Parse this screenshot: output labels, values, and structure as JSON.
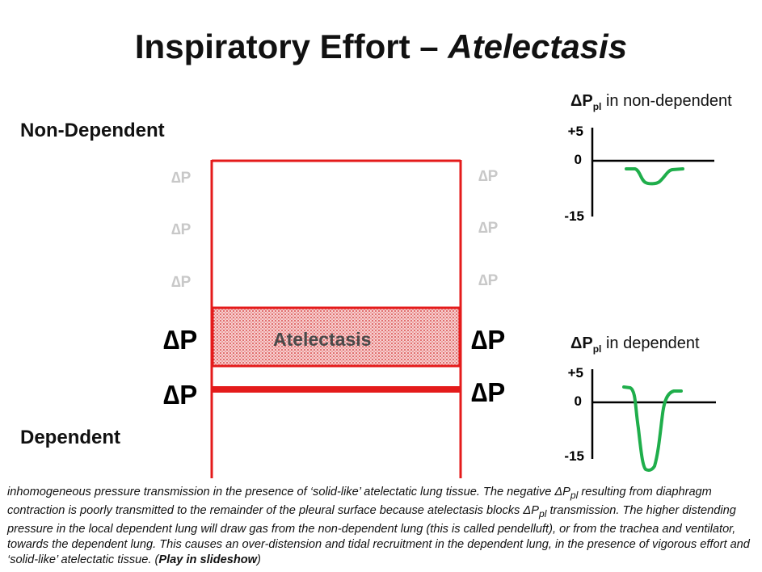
{
  "title": {
    "main": "Inspiratory Effort – ",
    "italic": "Atelectasis"
  },
  "labels": {
    "top": "Non-Dependent",
    "bottom": "Dependent",
    "atelectasis": "Atelectasis"
  },
  "delta_p": "∆P",
  "colors": {
    "lung_outline": "#e41b1b",
    "atelectasis_fill": "#f2b6b6",
    "trace": "#1fae4b",
    "faint_text": "#c8c8c8"
  },
  "plots": {
    "non_dependent": {
      "title_prefix": "ΔP",
      "title_sub": "pl",
      "title_suffix": " in non-dependent",
      "tick_top": "+5",
      "tick_zero": "0",
      "tick_bottom": "-15"
    },
    "dependent": {
      "title_prefix": "ΔP",
      "title_sub": "pl",
      "title_suffix": " in dependent",
      "tick_top": "+5",
      "tick_zero": "0",
      "tick_bottom": "-15"
    }
  },
  "caption": {
    "text": "inhomogeneous pressure transmission in the presence of ‘solid-like’ atelectatic lung tissue. The negative ΔP",
    "sub1": "pl",
    "text2": " resulting from diaphragm contraction is poorly transmitted to the remainder of the pleural surface because atelectasis blocks ΔP",
    "sub2": "pl",
    "text3": " transmission. The higher distending pressure in the local dependent lung will draw gas from the non-dependent lung (this is called pendelluft), or from the trachea and ventilator, towards the dependent lung. This causes an over-distension and tidal recruitment in the dependent lung, in the presence of vigorous effort and ‘solid-like’ atelectatic tissue. (",
    "bold": "Play in slideshow",
    "end": ")"
  }
}
